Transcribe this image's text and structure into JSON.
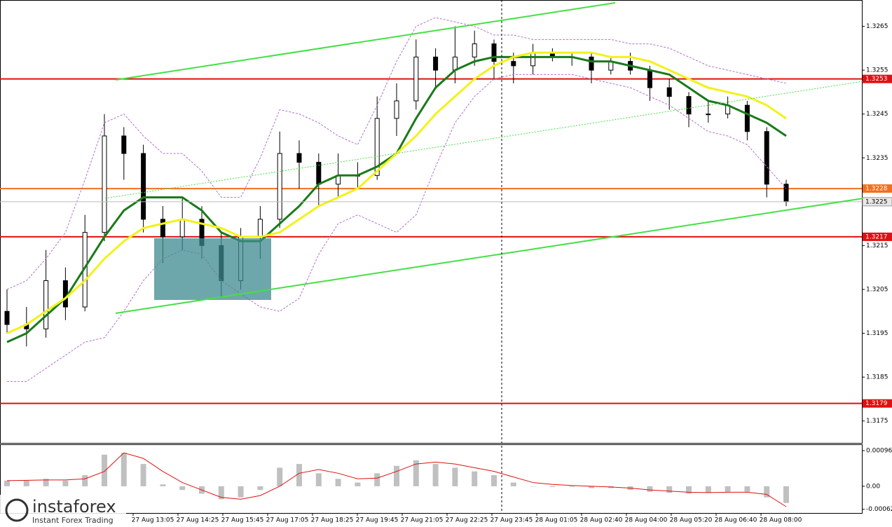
{
  "chart_data": {
    "type": "candlestick",
    "ylim": [
      1.317,
      1.3271
    ],
    "yticks": [
      1.3265,
      1.3255,
      1.3245,
      1.3235,
      1.3225,
      1.3215,
      1.3205,
      1.3195,
      1.3185,
      1.3175
    ],
    "open": [
      1.32,
      1.3197,
      1.3196,
      1.3207,
      1.3201,
      1.3218,
      1.324,
      1.3236,
      1.3221,
      1.3217,
      1.3221,
      1.3215,
      1.3207,
      1.3217,
      1.3221,
      1.3236,
      1.3234,
      1.3229,
      1.3231,
      1.3231,
      1.3244,
      1.3248,
      1.3258,
      1.3255,
      1.3258,
      1.3261,
      1.3257,
      1.3256,
      1.3259,
      1.3258,
      1.3258,
      1.3255,
      1.3257,
      1.3255,
      1.3251,
      1.3249,
      1.3245,
      1.3245,
      1.3247,
      1.3241,
      1.3229
    ],
    "high": [
      1.3205,
      1.3201,
      1.3214,
      1.321,
      1.3222,
      1.3245,
      1.3242,
      1.3238,
      1.3224,
      1.3226,
      1.3224,
      1.3218,
      1.3219,
      1.3224,
      1.3241,
      1.3239,
      1.3236,
      1.3236,
      1.3234,
      1.3249,
      1.3252,
      1.3262,
      1.326,
      1.3265,
      1.3264,
      1.3262,
      1.3259,
      1.3261,
      1.326,
      1.3259,
      1.3259,
      1.3258,
      1.3259,
      1.3256,
      1.3253,
      1.325,
      1.3248,
      1.3249,
      1.3248,
      1.3242,
      1.323
    ],
    "low": [
      1.3195,
      1.3192,
      1.3194,
      1.3198,
      1.32,
      1.3216,
      1.323,
      1.3218,
      1.3211,
      1.3214,
      1.3212,
      1.3203,
      1.3205,
      1.3212,
      1.3219,
      1.3228,
      1.3224,
      1.3226,
      1.3228,
      1.323,
      1.324,
      1.3246,
      1.3251,
      1.3252,
      1.3256,
      1.3253,
      1.3252,
      1.3254,
      1.3257,
      1.3256,
      1.3252,
      1.3254,
      1.3254,
      1.3248,
      1.3246,
      1.3242,
      1.3243,
      1.3244,
      1.3239,
      1.3226,
      1.3224
    ],
    "close": [
      1.3197,
      1.3196,
      1.3207,
      1.3201,
      1.3218,
      1.324,
      1.3236,
      1.3221,
      1.3217,
      1.3221,
      1.3215,
      1.3207,
      1.3217,
      1.3221,
      1.3236,
      1.3234,
      1.3229,
      1.3231,
      1.3231,
      1.3244,
      1.3248,
      1.3258,
      1.3255,
      1.3258,
      1.3261,
      1.3257,
      1.3256,
      1.3259,
      1.3258,
      1.3258,
      1.3255,
      1.3257,
      1.3255,
      1.3251,
      1.3249,
      1.3245,
      1.3245,
      1.3247,
      1.3241,
      1.3229,
      1.3225
    ],
    "series": [
      {
        "color": "#1a7a1a",
        "width": 3,
        "values": [
          1.3193,
          1.3195,
          1.3199,
          1.3203,
          1.321,
          1.3217,
          1.3223,
          1.3226,
          1.3226,
          1.3226,
          1.3223,
          1.3218,
          1.3216,
          1.3216,
          1.322,
          1.3224,
          1.3229,
          1.3231,
          1.3231,
          1.3233,
          1.3236,
          1.3244,
          1.3251,
          1.3255,
          1.3257,
          1.3258,
          1.3258,
          1.3258,
          1.3258,
          1.3258,
          1.3257,
          1.3257,
          1.3256,
          1.3255,
          1.3254,
          1.3251,
          1.3248,
          1.3247,
          1.3245,
          1.3243,
          1.324
        ]
      },
      {
        "color": "#f2f21a",
        "width": 3,
        "values": [
          1.3195,
          1.3197,
          1.32,
          1.3203,
          1.3207,
          1.3212,
          1.3216,
          1.3219,
          1.322,
          1.3221,
          1.322,
          1.3219,
          1.3217,
          1.3217,
          1.3218,
          1.3221,
          1.3224,
          1.3226,
          1.3228,
          1.3232,
          1.3236,
          1.324,
          1.3245,
          1.3249,
          1.3253,
          1.3256,
          1.3258,
          1.3259,
          1.3259,
          1.3259,
          1.3259,
          1.3258,
          1.3258,
          1.3257,
          1.3255,
          1.3253,
          1.3251,
          1.325,
          1.3249,
          1.3247,
          1.3244
        ]
      },
      {
        "color": "#b070d0",
        "width": 1,
        "dash": true,
        "values": [
          1.3205,
          1.3207,
          1.3212,
          1.3218,
          1.323,
          1.3243,
          1.3245,
          1.324,
          1.3236,
          1.3236,
          1.3232,
          1.3226,
          1.3226,
          1.3235,
          1.3246,
          1.3245,
          1.3243,
          1.324,
          1.3238,
          1.3247,
          1.3257,
          1.3265,
          1.3267,
          1.3266,
          1.3265,
          1.3263,
          1.3263,
          1.3262,
          1.3262,
          1.3262,
          1.3262,
          1.3262,
          1.3261,
          1.3261,
          1.326,
          1.3258,
          1.3256,
          1.3255,
          1.3254,
          1.3253,
          1.3252
        ]
      },
      {
        "color": "#b070d0",
        "width": 1,
        "dash": true,
        "values": [
          1.3184,
          1.3184,
          1.3187,
          1.319,
          1.3193,
          1.3194,
          1.32,
          1.3207,
          1.3212,
          1.3214,
          1.3213,
          1.3207,
          1.3204,
          1.3201,
          1.32,
          1.3203,
          1.3213,
          1.322,
          1.3222,
          1.322,
          1.3218,
          1.3222,
          1.3233,
          1.3243,
          1.3249,
          1.3253,
          1.3254,
          1.3254,
          1.3254,
          1.3254,
          1.3253,
          1.3252,
          1.3251,
          1.3249,
          1.3247,
          1.3244,
          1.3241,
          1.324,
          1.3238,
          1.3233,
          1.3228
        ]
      }
    ],
    "levels": [
      {
        "value": 1.3253,
        "color": "#e01010"
      },
      {
        "value": 1.3228,
        "color": "#f07020"
      },
      {
        "value": 1.3217,
        "color": "#e01010"
      },
      {
        "value": 1.3179,
        "color": "#e01010"
      }
    ],
    "current_price": 1.3225,
    "time_labels": [
      "27 Aug 13:05",
      "27 Aug 14:25",
      "27 Aug 15:45",
      "27 Aug 17:05",
      "27 Aug 18:25",
      "27 Aug 19:45",
      "27 Aug 21:05",
      "27 Aug 22:25",
      "27 Aug 23:45",
      "28 Aug 01:05",
      "28 Aug 02:40",
      "28 Aug 04:00",
      "28 Aug 05:20",
      "28 Aug 06:40",
      "28 Aug 08:00"
    ],
    "macd": {
      "ylim": [
        -0.00072,
        0.00113
      ],
      "yticks": [
        0.00096,
        {
          "value": 0,
          "label": "0.00"
        },
        -0.00062
      ],
      "histogram": [
        0.00015,
        0.00015,
        0.0002,
        0.00015,
        0.0003,
        0.00085,
        0.0009,
        0.0006,
        5e-05,
        -0.0001,
        -0.0002,
        -0.00035,
        -0.0003,
        -0.0001,
        0.0005,
        0.0006,
        0.00035,
        0.0002,
        0.0001,
        0.00035,
        0.00055,
        0.0007,
        0.0006,
        0.0005,
        0.0004,
        0.0003,
        0.0001,
        0.0,
        -2e-05,
        -2e-05,
        -5e-05,
        -5e-05,
        -0.0001,
        -0.00015,
        -0.00018,
        -0.0002,
        -0.00018,
        -0.00015,
        -0.00015,
        -0.0003,
        -0.00045
      ],
      "signal": [
        0.00015,
        0.00016,
        0.00017,
        0.00017,
        0.0002,
        0.0004,
        0.0009,
        0.00075,
        0.0004,
        0.0001,
        -0.0001,
        -0.0003,
        -0.00035,
        -0.00025,
        0.0,
        0.00035,
        0.00045,
        0.00035,
        0.0002,
        0.00022,
        0.0004,
        0.0006,
        0.00065,
        0.0006,
        0.0005,
        0.0004,
        0.00025,
        0.0001,
        5e-05,
        2e-05,
        0.0,
        -2e-05,
        -5e-05,
        -0.0001,
        -0.00013,
        -0.00016,
        -0.00017,
        -0.00016,
        -0.00016,
        -0.00022,
        -0.00055
      ],
      "histogram_color": "#c0c0c0",
      "signal_color": "#e01010"
    },
    "brand": "instaforex",
    "brand_tagline": "Instant Forex Trading"
  }
}
